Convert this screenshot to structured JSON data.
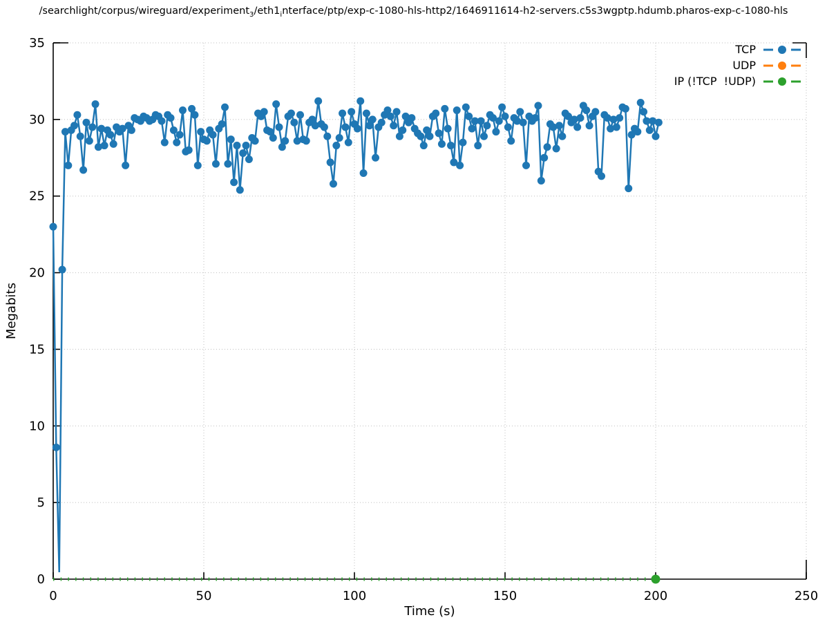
{
  "chart_data": {
    "type": "line",
    "title_parts": [
      {
        "t": "/searchlight/corpus/wireguard/experiment"
      },
      {
        "t": "3",
        "sub": true
      },
      {
        "t": "/eth1"
      },
      {
        "t": "i",
        "sub": true
      },
      {
        "t": "nterface/ptp/exp-c-1080-hls-http2/1646911614-h2-servers.c5s3wgptp.hdumb.pharos-exp-c-1080-hls"
      }
    ],
    "xlabel": "Time (s)",
    "ylabel": "Megabits",
    "xlim": [
      0,
      250
    ],
    "ylim": [
      0,
      35
    ],
    "xticks": [
      0,
      50,
      100,
      150,
      200,
      250
    ],
    "yticks": [
      0,
      5,
      10,
      15,
      20,
      25,
      30,
      35
    ],
    "grid": "dotted",
    "legend_position": "top-right-inside",
    "colors": {
      "tcp": "#1f77b4",
      "udp": "#ff7f0e",
      "ip": "#2ca02c",
      "grid": "#bdbdbd",
      "axis": "#000000"
    },
    "legend": [
      {
        "label": "TCP",
        "color_key": "tcp"
      },
      {
        "label": "UDP",
        "color_key": "udp"
      },
      {
        "label": "IP (!TCP  !UDP)",
        "color_key": "ip"
      }
    ],
    "series": [
      {
        "name": "TCP",
        "color_key": "tcp",
        "style": "linespoints",
        "no_marker_x": [
          2
        ],
        "points": [
          [
            0,
            23.0
          ],
          [
            1,
            8.6
          ],
          [
            2,
            0.45
          ],
          [
            3,
            20.2
          ],
          [
            4,
            29.2
          ],
          [
            5,
            27.0
          ],
          [
            6,
            29.3
          ],
          [
            7,
            29.6
          ],
          [
            8,
            30.3
          ],
          [
            9,
            28.9
          ],
          [
            10,
            26.7
          ],
          [
            11,
            29.8
          ],
          [
            12,
            28.6
          ],
          [
            13,
            29.5
          ],
          [
            14,
            31.0
          ],
          [
            15,
            28.2
          ],
          [
            16,
            29.4
          ],
          [
            17,
            28.3
          ],
          [
            18,
            29.3
          ],
          [
            19,
            29.0
          ],
          [
            20,
            28.4
          ],
          [
            21,
            29.5
          ],
          [
            22,
            29.2
          ],
          [
            23,
            29.4
          ],
          [
            24,
            27.0
          ],
          [
            25,
            29.6
          ],
          [
            26,
            29.3
          ],
          [
            27,
            30.1
          ],
          [
            28,
            30.0
          ],
          [
            29,
            29.9
          ],
          [
            30,
            30.2
          ],
          [
            31,
            30.1
          ],
          [
            32,
            29.9
          ],
          [
            33,
            30.0
          ],
          [
            34,
            30.3
          ],
          [
            35,
            30.2
          ],
          [
            36,
            29.9
          ],
          [
            37,
            28.5
          ],
          [
            38,
            30.3
          ],
          [
            39,
            30.1
          ],
          [
            40,
            29.3
          ],
          [
            41,
            28.5
          ],
          [
            42,
            29.0
          ],
          [
            43,
            30.6
          ],
          [
            44,
            27.9
          ],
          [
            45,
            28.0
          ],
          [
            46,
            30.7
          ],
          [
            47,
            30.3
          ],
          [
            48,
            27.0
          ],
          [
            49,
            29.2
          ],
          [
            50,
            28.7
          ],
          [
            51,
            28.6
          ],
          [
            52,
            29.3
          ],
          [
            53,
            29.0
          ],
          [
            54,
            27.1
          ],
          [
            55,
            29.4
          ],
          [
            56,
            29.7
          ],
          [
            57,
            30.8
          ],
          [
            58,
            27.1
          ],
          [
            59,
            28.7
          ],
          [
            60,
            25.9
          ],
          [
            61,
            28.3
          ],
          [
            62,
            25.4
          ],
          [
            63,
            27.8
          ],
          [
            64,
            28.3
          ],
          [
            65,
            27.4
          ],
          [
            66,
            28.8
          ],
          [
            67,
            28.6
          ],
          [
            68,
            30.4
          ],
          [
            69,
            30.2
          ],
          [
            70,
            30.5
          ],
          [
            71,
            29.3
          ],
          [
            72,
            29.2
          ],
          [
            73,
            28.8
          ],
          [
            74,
            31.0
          ],
          [
            75,
            29.5
          ],
          [
            76,
            28.2
          ],
          [
            77,
            28.6
          ],
          [
            78,
            30.2
          ],
          [
            79,
            30.4
          ],
          [
            80,
            29.8
          ],
          [
            81,
            28.6
          ],
          [
            82,
            30.3
          ],
          [
            83,
            28.7
          ],
          [
            84,
            28.6
          ],
          [
            85,
            29.8
          ],
          [
            86,
            30.0
          ],
          [
            87,
            29.6
          ],
          [
            88,
            31.2
          ],
          [
            89,
            29.7
          ],
          [
            90,
            29.5
          ],
          [
            91,
            28.9
          ],
          [
            92,
            27.2
          ],
          [
            93,
            25.8
          ],
          [
            94,
            28.3
          ],
          [
            95,
            28.8
          ],
          [
            96,
            30.4
          ],
          [
            97,
            29.5
          ],
          [
            98,
            28.5
          ],
          [
            99,
            30.5
          ],
          [
            100,
            29.7
          ],
          [
            101,
            29.4
          ],
          [
            102,
            31.2
          ],
          [
            103,
            26.5
          ],
          [
            104,
            30.4
          ],
          [
            105,
            29.6
          ],
          [
            106,
            30.0
          ],
          [
            107,
            27.5
          ],
          [
            108,
            29.5
          ],
          [
            109,
            29.8
          ],
          [
            110,
            30.3
          ],
          [
            111,
            30.6
          ],
          [
            112,
            30.2
          ],
          [
            113,
            29.6
          ],
          [
            114,
            30.5
          ],
          [
            115,
            28.9
          ],
          [
            116,
            29.3
          ],
          [
            117,
            30.2
          ],
          [
            118,
            29.8
          ],
          [
            119,
            30.1
          ],
          [
            120,
            29.4
          ],
          [
            121,
            29.1
          ],
          [
            122,
            28.9
          ],
          [
            123,
            28.3
          ],
          [
            124,
            29.3
          ],
          [
            125,
            28.9
          ],
          [
            126,
            30.2
          ],
          [
            127,
            30.4
          ],
          [
            128,
            29.1
          ],
          [
            129,
            28.4
          ],
          [
            130,
            30.7
          ],
          [
            131,
            29.4
          ],
          [
            132,
            28.3
          ],
          [
            133,
            27.2
          ],
          [
            134,
            30.6
          ],
          [
            135,
            27.0
          ],
          [
            136,
            28.5
          ],
          [
            137,
            30.8
          ],
          [
            138,
            30.2
          ],
          [
            139,
            29.4
          ],
          [
            140,
            29.9
          ],
          [
            141,
            28.3
          ],
          [
            142,
            29.9
          ],
          [
            143,
            28.9
          ],
          [
            144,
            29.6
          ],
          [
            145,
            30.3
          ],
          [
            146,
            30.1
          ],
          [
            147,
            29.2
          ],
          [
            148,
            29.9
          ],
          [
            149,
            30.8
          ],
          [
            150,
            30.2
          ],
          [
            151,
            29.5
          ],
          [
            152,
            28.6
          ],
          [
            153,
            30.1
          ],
          [
            154,
            29.9
          ],
          [
            155,
            30.5
          ],
          [
            156,
            29.8
          ],
          [
            157,
            27.0
          ],
          [
            158,
            30.2
          ],
          [
            159,
            29.9
          ],
          [
            160,
            30.1
          ],
          [
            161,
            30.9
          ],
          [
            162,
            26.0
          ],
          [
            163,
            27.5
          ],
          [
            164,
            28.2
          ],
          [
            165,
            29.7
          ],
          [
            166,
            29.5
          ],
          [
            167,
            28.1
          ],
          [
            168,
            29.6
          ],
          [
            169,
            28.9
          ],
          [
            170,
            30.4
          ],
          [
            171,
            30.2
          ],
          [
            172,
            29.8
          ],
          [
            173,
            30.0
          ],
          [
            174,
            29.5
          ],
          [
            175,
            30.1
          ],
          [
            176,
            30.9
          ],
          [
            177,
            30.6
          ],
          [
            178,
            29.6
          ],
          [
            179,
            30.2
          ],
          [
            180,
            30.5
          ],
          [
            181,
            26.6
          ],
          [
            182,
            26.3
          ],
          [
            183,
            30.3
          ],
          [
            184,
            30.1
          ],
          [
            185,
            29.4
          ],
          [
            186,
            30.0
          ],
          [
            187,
            29.5
          ],
          [
            188,
            30.1
          ],
          [
            189,
            30.8
          ],
          [
            190,
            30.7
          ],
          [
            191,
            25.5
          ],
          [
            192,
            29.0
          ],
          [
            193,
            29.4
          ],
          [
            194,
            29.2
          ],
          [
            195,
            31.1
          ],
          [
            196,
            30.5
          ],
          [
            197,
            29.9
          ],
          [
            198,
            29.3
          ],
          [
            199,
            29.9
          ],
          [
            200,
            28.9
          ],
          [
            201,
            29.8
          ]
        ]
      },
      {
        "name": "UDP",
        "color_key": "udp",
        "style": "linespoints",
        "points": []
      },
      {
        "name": "IP (!TCP  !UDP)",
        "color_key": "ip",
        "style": "dashed-line",
        "points": [
          [
            0,
            0
          ],
          [
            200,
            0
          ]
        ],
        "marker_at": [
          [
            200,
            0
          ]
        ]
      }
    ]
  }
}
